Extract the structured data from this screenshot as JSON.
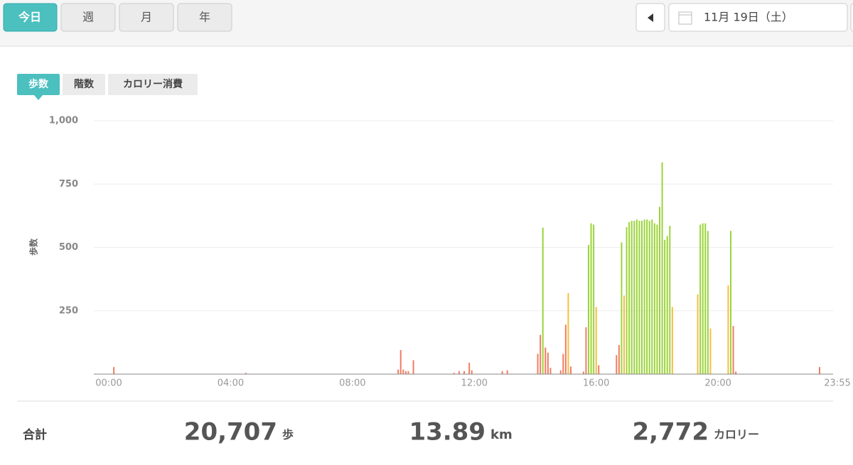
{
  "tabs": [
    "今日",
    "週",
    "月",
    "年"
  ],
  "date": "11月 19日（土）",
  "metric_tabs": [
    "歩数",
    "階数",
    "カロリー消費"
  ],
  "chart_data": {
    "type": "bar",
    "ylabel": "歩数",
    "xlim": [
      0,
      1435
    ],
    "xticks": [
      {
        "value": 0,
        "label": "00:00"
      },
      {
        "value": 240,
        "label": "04:00"
      },
      {
        "value": 480,
        "label": "08:00"
      },
      {
        "value": 720,
        "label": "12:00"
      },
      {
        "value": 960,
        "label": "16:00"
      },
      {
        "value": 1200,
        "label": "20:00"
      },
      {
        "value": 1435,
        "label": "23:55"
      }
    ],
    "ylim": [
      0,
      1000
    ],
    "yticks": [
      250,
      500,
      750,
      {
        "value": 1000,
        "label": "1,000"
      }
    ],
    "grid": true,
    "series": [
      {
        "color": "#ef7d62",
        "x": [
          10,
          270,
          570,
          575,
          580,
          585,
          590,
          600,
          680,
          690,
          700,
          710,
          715,
          775,
          785,
          845,
          850,
          860,
          865,
          870,
          890,
          895,
          900,
          910,
          935,
          940,
          965,
          1000,
          1005,
          1230,
          1235,
          1400
        ],
        "values": [
          28,
          5,
          18,
          95,
          18,
          12,
          12,
          55,
          5,
          12,
          12,
          45,
          15,
          12,
          15,
          80,
          155,
          105,
          85,
          25,
          15,
          80,
          195,
          30,
          10,
          185,
          35,
          75,
          115,
          190,
          10,
          28
        ]
      },
      {
        "color": "#f5bf3f",
        "x": [
          905,
          960,
          1015,
          1110,
          1160,
          1185,
          1220
        ],
        "values": [
          320,
          265,
          310,
          265,
          315,
          180,
          350
        ]
      },
      {
        "color": "#9bd43a",
        "x": [
          855,
          945,
          950,
          955,
          1010,
          1020,
          1025,
          1030,
          1035,
          1040,
          1045,
          1050,
          1055,
          1060,
          1065,
          1070,
          1075,
          1080,
          1085,
          1090,
          1095,
          1100,
          1105,
          1165,
          1170,
          1175,
          1180,
          1225
        ],
        "values": [
          578,
          510,
          595,
          590,
          520,
          580,
          600,
          605,
          605,
          610,
          605,
          605,
          610,
          610,
          605,
          610,
          595,
          590,
          660,
          835,
          530,
          545,
          585,
          590,
          595,
          595,
          565,
          565
        ]
      }
    ]
  },
  "summary": {
    "label": "合計",
    "steps": "20,707",
    "steps_unit": "歩",
    "distance": "13.89",
    "distance_unit": "km",
    "calories": "2,772",
    "calories_unit": "カロリー"
  }
}
